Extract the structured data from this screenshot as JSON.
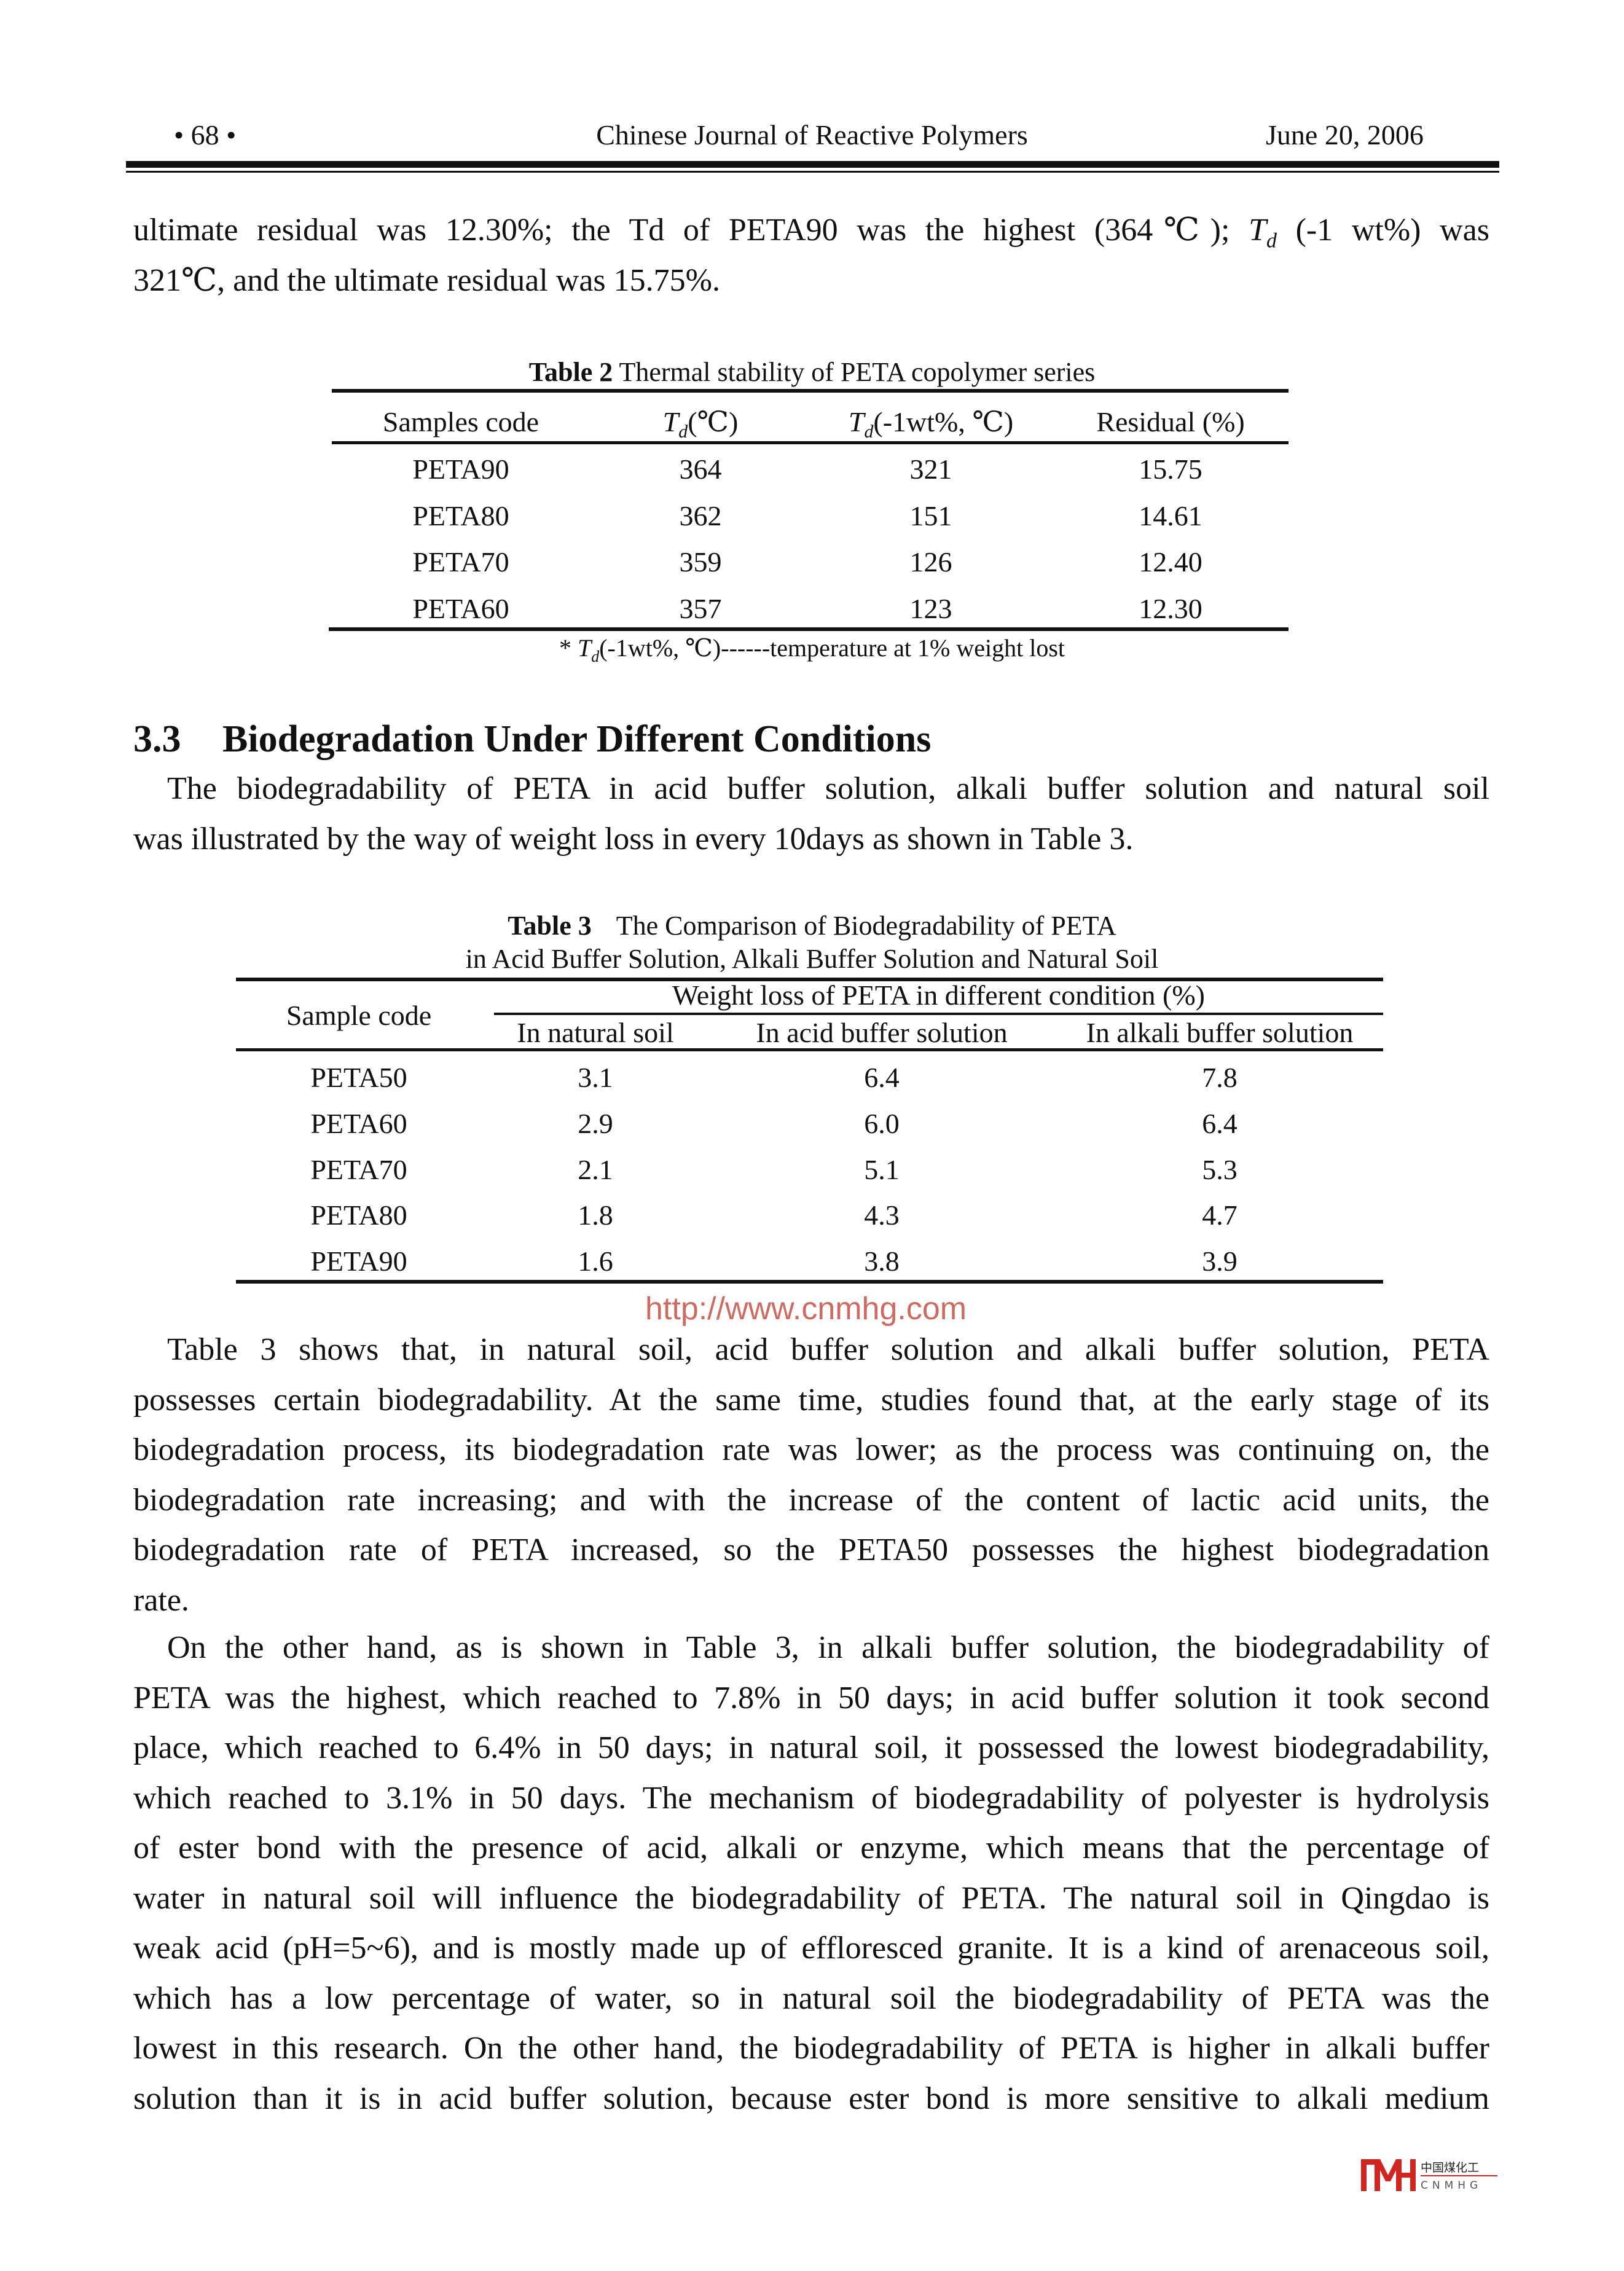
{
  "header": {
    "page": "• 68 •",
    "journal": "Chinese Journal of Reactive Polymers",
    "date": "June 20, 2006"
  },
  "para1": {
    "lines": [
      "ultimate residual was 12.30%; the Td of PETA90 was the highest (364℃); T_d (-1 wt%) was",
      "321℃, and the ultimate residual was 15.75%."
    ]
  },
  "table2": {
    "caption_label": "Table 2",
    "caption_text": " Thermal stability of PETA copolymer series",
    "headers": [
      "Samples code",
      "(℃)",
      "(-1wt%, ℃)",
      "Residual (%)"
    ],
    "td_symbol": "T",
    "td_sub": "d",
    "rows": [
      [
        "PETA90",
        "364",
        "321",
        "15.75"
      ],
      [
        "PETA80",
        "362",
        "151",
        "14.61"
      ],
      [
        "PETA70",
        "359",
        "126",
        "12.40"
      ],
      [
        "PETA60",
        "357",
        "123",
        "12.30"
      ]
    ],
    "footnote_prefix": "* ",
    "footnote_text": "(-1wt%, ℃)------temperature at 1% weight lost"
  },
  "section": {
    "number": "3.3",
    "title": "Biodegradation Under Different Conditions"
  },
  "para2": {
    "lines": [
      "The biodegradability of PETA in acid buffer solution, alkali buffer solution and natural soil",
      "was illustrated by the way of weight loss in every 10days as shown in Table 3."
    ]
  },
  "table3": {
    "caption_label": "Table 3",
    "caption_text": "The Comparison of Biodegradability of PETA",
    "caption_line2": "in Acid Buffer Solution, Alkali Buffer Solution and Natural Soil",
    "sample_header": "Sample code",
    "group_header": "Weight loss of PETA in different condition (%)",
    "sub_headers": [
      "In natural soil",
      "In acid buffer solution",
      "In alkali buffer solution"
    ],
    "rows": [
      [
        "PETA50",
        "3.1",
        "6.4",
        "7.8"
      ],
      [
        "PETA60",
        "2.9",
        "6.0",
        "6.4"
      ],
      [
        "PETA70",
        "2.1",
        "5.1",
        "5.3"
      ],
      [
        "PETA80",
        "1.8",
        "4.3",
        "4.7"
      ],
      [
        "PETA90",
        "1.6",
        "3.8",
        "3.9"
      ]
    ]
  },
  "para3": {
    "lines": [
      "Table 3 shows that, in natural soil, acid buffer solution and alkali buffer solution, PETA",
      "possesses certain biodegradability. At the same time, studies found that, at the early stage of its",
      "biodegradation process, its biodegradation rate was lower; as the process was continuing on, the",
      "biodegradation rate increasing; and with the increase of the content of lactic acid units, the",
      "biodegradation rate of PETA increased, so the PETA50 possesses the highest biodegradation",
      "rate."
    ]
  },
  "para4": {
    "lines": [
      "On the other hand, as is shown in Table 3, in alkali buffer solution, the biodegradability of",
      "PETA was the highest, which reached to 7.8% in 50 days; in acid buffer solution it took second",
      "place, which reached to 6.4% in 50 days; in natural soil, it possessed the lowest biodegradability,",
      "which reached to 3.1% in 50 days. The mechanism of biodegradability of polyester is hydrolysis",
      "of ester bond with the presence of acid, alkali or enzyme, which means that the percentage of",
      "water in natural soil will influence the biodegradability of PETA. The natural soil in Qingdao is",
      "weak acid (pH=5~6), and is mostly made up of effloresced granite. It is a kind of arenaceous soil,",
      "which has a low percentage of water, so in natural soil the biodegradability of PETA was the",
      "lowest in this research. On the other hand, the biodegradability of PETA is higher in alkali buffer",
      "solution than it is in acid buffer solution, because ester bond is more sensitive to alkali medium"
    ]
  },
  "watermark": "http://www.cnmhg.com",
  "logo": {
    "mark": "MH",
    "cn": "中国煤化工",
    "en": "CNMHG",
    "color": "#d0261f"
  }
}
